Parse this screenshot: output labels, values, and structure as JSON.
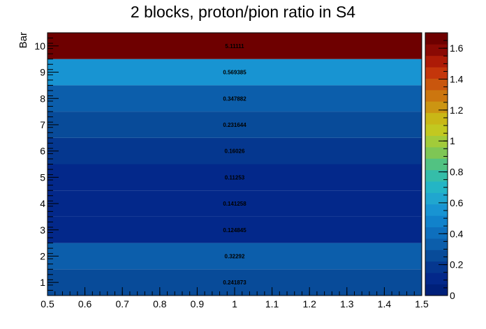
{
  "chart_data": {
    "type": "heatmap",
    "title": "2 blocks, proton/pion ratio in S4",
    "xlabel": "",
    "ylabel": "Bar",
    "xlim": [
      0.5,
      1.5
    ],
    "ylim": [
      0.5,
      10.5
    ],
    "x_ticks": [
      "0.5",
      "0.6",
      "0.7",
      "0.8",
      "0.9",
      "1",
      "1.1",
      "1.2",
      "1.3",
      "1.4",
      "1.5"
    ],
    "y_ticks": [
      "1",
      "2",
      "3",
      "4",
      "5",
      "6",
      "7",
      "8",
      "9",
      "10"
    ],
    "bars": [
      1,
      2,
      3,
      4,
      5,
      6,
      7,
      8,
      9,
      10
    ],
    "values": [
      0.241873,
      0.32292,
      0.124845,
      0.141258,
      0.11253,
      0.16026,
      0.231644,
      0.347882,
      0.569385,
      5.11111
    ],
    "labels": [
      "0.241873",
      "0.32292",
      "0.124845",
      "0.141258",
      "0.11253",
      "0.16026",
      "0.231644",
      "0.347882",
      "0.569385",
      "5.11111"
    ],
    "zlim": [
      0,
      1.7
    ],
    "z_ticks": [
      "0",
      "0.2",
      "0.4",
      "0.6",
      "0.8",
      "1",
      "1.2",
      "1.4",
      "1.6"
    ],
    "palette": [
      "#00207a",
      "#03288a",
      "#05378f",
      "#084b99",
      "#0c5eab",
      "#0e6fbd",
      "#1182cb",
      "#1894d2",
      "#20a6cf",
      "#24b5c5",
      "#35bda9",
      "#52c282",
      "#7ec655",
      "#a2cb3a",
      "#c2c820",
      "#c9b716",
      "#cc9512",
      "#cc760f",
      "#c9560d",
      "#c4360b",
      "#ad1b07",
      "#8a0904",
      "#6e0000"
    ]
  }
}
